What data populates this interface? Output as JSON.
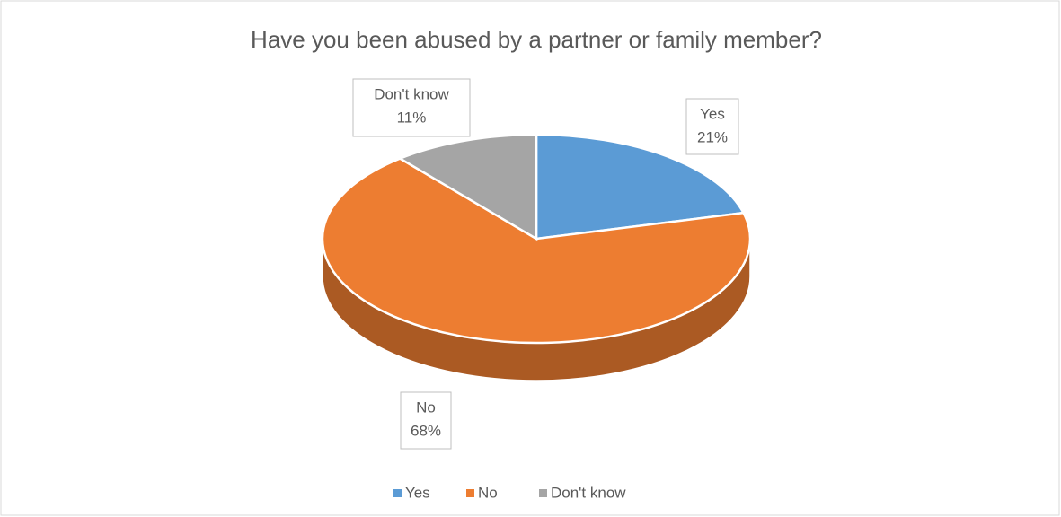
{
  "chart_data": {
    "type": "pie",
    "title": "Have you been abused by a partner or family member?",
    "categories": [
      "Yes",
      "No",
      "Don't know"
    ],
    "values": [
      21,
      68,
      11
    ],
    "value_labels": [
      "21%",
      "68%",
      "11%"
    ],
    "colors": [
      "#5b9bd5",
      "#ed7d31",
      "#a5a5a5"
    ],
    "legend": "bottom"
  }
}
